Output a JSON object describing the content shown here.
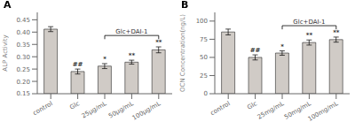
{
  "chart_data": [
    {
      "type": "bar",
      "title": "A",
      "categories": [
        "control",
        "Glc",
        "25μg/mL",
        "50μg/mL",
        "100μg/mL"
      ],
      "values": [
        0.412,
        0.24,
        0.262,
        0.278,
        0.328
      ],
      "errors": [
        0.01,
        0.01,
        0.01,
        0.008,
        0.012
      ],
      "ylabel": "ALP Activity",
      "ylim": [
        0.15,
        0.48
      ],
      "yticks": [
        0.15,
        {
          "value": 0.2,
          "label": "0.20"
        },
        0.25,
        {
          "value": 0.3,
          "label": "0.30"
        },
        0.35,
        {
          "value": 0.4,
          "label": "0.40"
        },
        0.45
      ],
      "color": "#d0cbc6",
      "annotations": [
        null,
        "##",
        "*",
        "**",
        "**"
      ],
      "bracket": {
        "label": "Glc+DAI-1",
        "from": "25μg/mL",
        "to": "100μg/mL"
      }
    },
    {
      "type": "bar",
      "title": "B",
      "categories": [
        "control",
        "Glc",
        "25mg/mL",
        "50mg/mL",
        "100mg/mL"
      ],
      "values": [
        85.0,
        50.0,
        56.0,
        70.5,
        74.5
      ],
      "errors": [
        4.0,
        3.5,
        3.0,
        3.5,
        3.5
      ],
      "ylabel": "OCN Concentration(ng/L)",
      "ylim": [
        0,
        112
      ],
      "yticks": [
        0,
        25,
        50,
        75,
        100
      ],
      "color": "#d0cbc6",
      "annotations": [
        null,
        "##",
        "*",
        "**",
        "**"
      ],
      "bracket": {
        "label": "Glc+DAI-1",
        "from": "25mg/mL",
        "to": "100mg/mL"
      }
    }
  ]
}
